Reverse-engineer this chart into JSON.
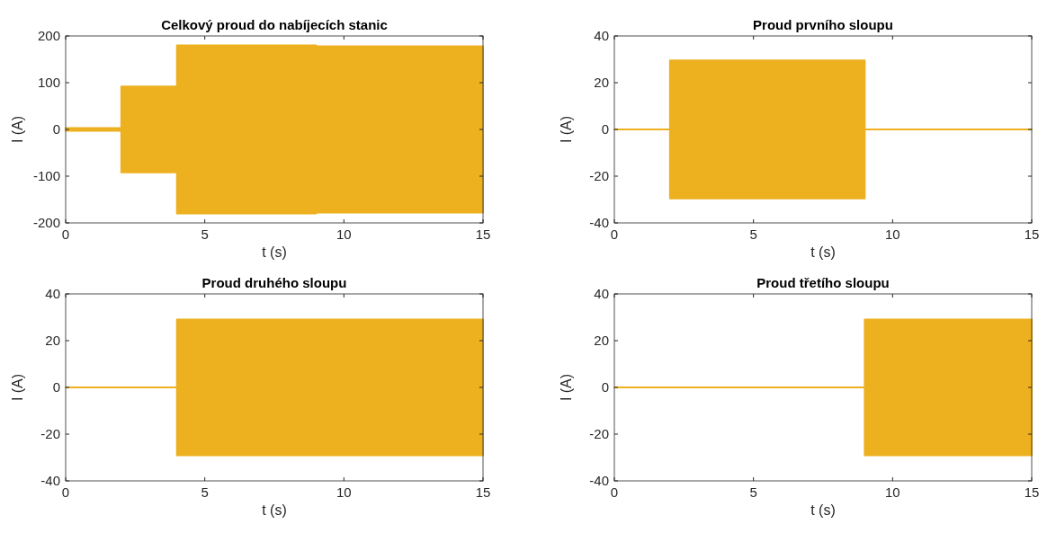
{
  "chart_data": [
    {
      "type": "area",
      "title": "Celkový proud do nabíjecích stanic",
      "xlabel": "t (s)",
      "ylabel": "I (A)",
      "xlim": [
        0,
        15
      ],
      "xticks": [
        0,
        5,
        10,
        15
      ],
      "ylim": [
        -200,
        200
      ],
      "yticks": [
        -200,
        -100,
        0,
        100,
        200
      ],
      "series": [
        {
          "color": "#edb120",
          "x": [
            0,
            2,
            2,
            4,
            4,
            9,
            9,
            15
          ],
          "values": [
            3,
            3,
            92,
            92,
            180,
            180,
            178,
            178
          ]
        },
        {
          "color": "#edb120",
          "x": [
            0,
            2,
            2,
            4,
            4,
            9,
            9,
            15
          ],
          "values": [
            -3,
            -3,
            -92,
            -92,
            -180,
            -180,
            -178,
            -178
          ]
        }
      ]
    },
    {
      "type": "area",
      "title": "Proud prvního sloupu",
      "xlabel": "t (s)",
      "ylabel": "I (A)",
      "xlim": [
        0,
        15
      ],
      "xticks": [
        0,
        5,
        10,
        15
      ],
      "ylim": [
        -40,
        40
      ],
      "yticks": [
        -40,
        -20,
        0,
        20,
        40
      ],
      "series": [
        {
          "color": "#edb120",
          "x": [
            0,
            2,
            2,
            9,
            9,
            15
          ],
          "values": [
            0,
            0,
            -29.5,
            -29.5,
            0,
            0
          ]
        },
        {
          "color": "#edb120",
          "x": [
            2,
            9
          ],
          "values": [
            29.5,
            29.5
          ]
        }
      ]
    },
    {
      "type": "area",
      "title": "Proud druhého sloupu",
      "xlabel": "t (s)",
      "ylabel": "I (A)",
      "xlim": [
        0,
        15
      ],
      "xticks": [
        0,
        5,
        10,
        15
      ],
      "ylim": [
        -40,
        40
      ],
      "yticks": [
        -40,
        -20,
        0,
        20,
        40
      ],
      "series": [
        {
          "color": "#edb120",
          "x": [
            0,
            4,
            4,
            15
          ],
          "values": [
            0,
            0,
            -29,
            -29
          ]
        },
        {
          "color": "#edb120",
          "x": [
            4,
            15
          ],
          "values": [
            29,
            29
          ]
        }
      ]
    },
    {
      "type": "area",
      "title": "Proud třetího sloupu",
      "xlabel": "t (s)",
      "ylabel": "I (A)",
      "xlim": [
        0,
        15
      ],
      "xticks": [
        0,
        5,
        10,
        15
      ],
      "ylim": [
        -40,
        40
      ],
      "yticks": [
        -40,
        -20,
        0,
        20,
        40
      ],
      "series": [
        {
          "color": "#edb120",
          "x": [
            0,
            9,
            9,
            15
          ],
          "values": [
            0,
            0,
            -29,
            -29
          ]
        },
        {
          "color": "#edb120",
          "x": [
            9,
            15
          ],
          "values": [
            29,
            29
          ]
        }
      ]
    }
  ]
}
